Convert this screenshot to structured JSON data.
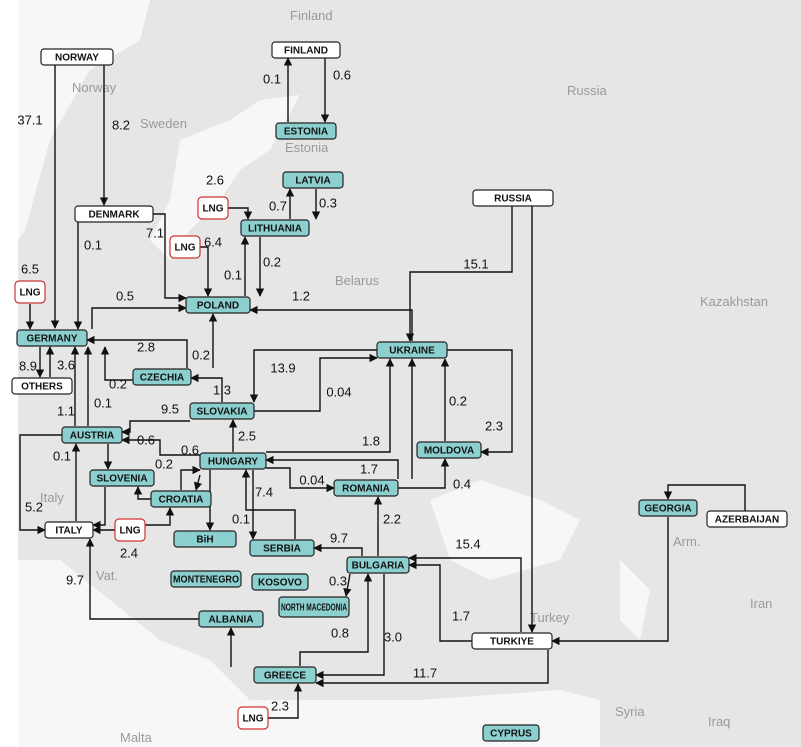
{
  "map_labels": [
    "Finland",
    "Russia",
    "Norway",
    "Sweden",
    "Estonia",
    "Belarus",
    "Kazakhstan",
    "Italy",
    "Vat.",
    "Turkey",
    "Arm.",
    "Iran",
    "Syria",
    "Iraq",
    "Malta"
  ],
  "nodes": [
    "NORWAY",
    "FINLAND",
    "ESTONIA",
    "LATVIA",
    "LITHUANIA",
    "DENMARK",
    "LNG",
    "LNG",
    "LNG",
    "POLAND",
    "GERMANY",
    "OTHERS",
    "CZECHIA",
    "SLOVAKIA",
    "AUSTRIA",
    "SLOVENIA",
    "CROATIA",
    "HUNGARY",
    "ITALY",
    "LNG",
    "BiH",
    "MONTENEGRO",
    "KOSOVO",
    "NORTH MACEDONIA",
    "SERBIA",
    "BULGARIA",
    "ROMANIA",
    "MOLDOVA",
    "UKRAINE",
    "RUSSIA",
    "GEORGIA",
    "AZERBAIJAN",
    "TURKIYE",
    "ALBANIA",
    "GREECE",
    "LNG",
    "CYPRUS"
  ],
  "flows": [
    "37.1",
    "8.2",
    "0.1",
    "0.6",
    "2.6",
    "0.7",
    "0.3",
    "6.4",
    "7.1",
    "0.1",
    "0.1",
    "0.2",
    "6.5",
    "0.5",
    "1.2",
    "8.9",
    "3.6",
    "2.8",
    "0.2",
    "0.2",
    "1.3",
    "13.9",
    "0.04",
    "9.5",
    "0.1",
    "1.1",
    "0.6",
    "0.1",
    "5.2",
    "0.6",
    "0.2",
    "2.5",
    "1.8",
    "1.7",
    "0.04",
    "7.4",
    "0.1",
    "9.7",
    "2.2",
    "0.3",
    "0.4",
    "0.2",
    "2.3",
    "15.1",
    "15.4",
    "1.7",
    "11.7",
    "3.0",
    "0.8",
    "2.3",
    "9.7",
    "2.4"
  ]
}
